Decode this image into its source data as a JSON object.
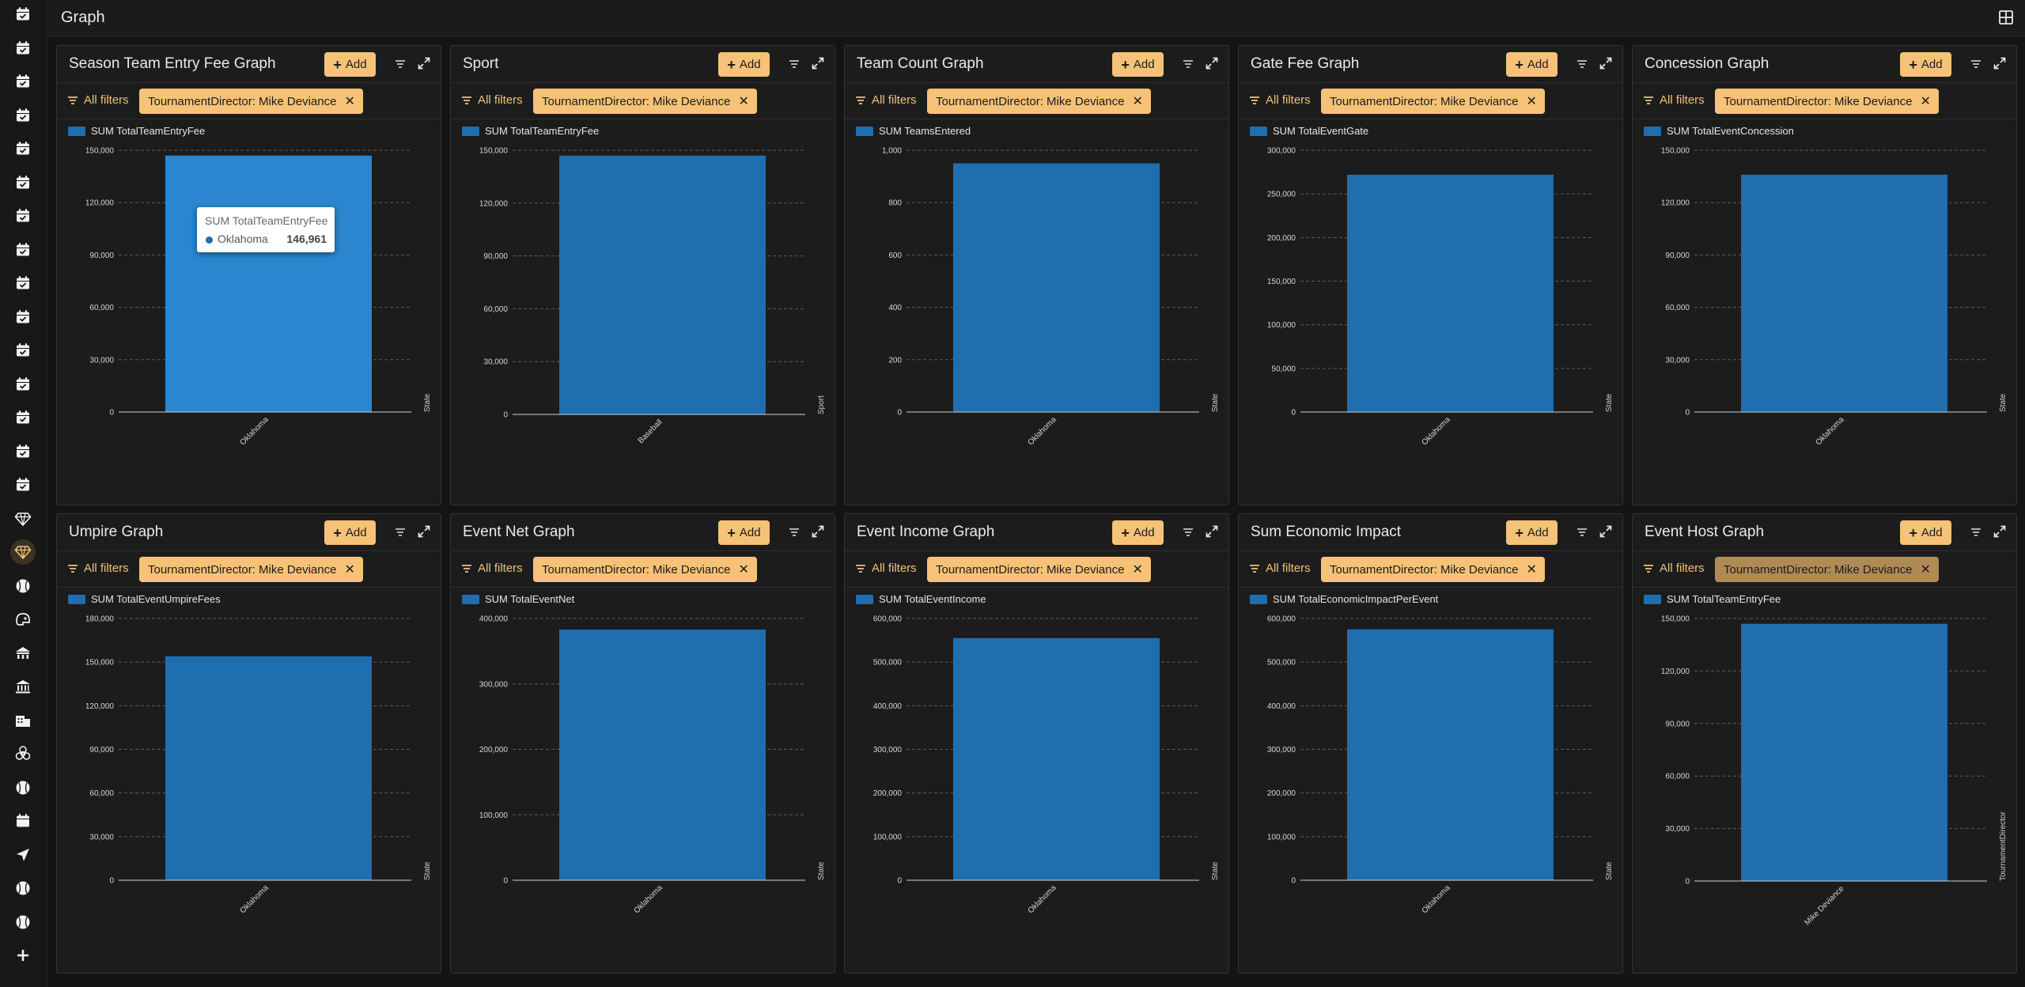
{
  "header": {
    "title": "Graph"
  },
  "sidebar": {
    "icons": [
      "calendar-check-icon",
      "calendar-check-icon",
      "calendar-check-icon",
      "calendar-check-icon",
      "calendar-check-icon",
      "calendar-check-icon",
      "calendar-check-icon",
      "calendar-check-icon",
      "calendar-check-icon",
      "calendar-check-icon",
      "calendar-check-icon",
      "calendar-check-icon",
      "calendar-check-icon",
      "calendar-check-icon",
      "calendar-check-icon",
      "diamond-icon",
      "diamond-icon",
      "baseball-icon",
      "helmet-icon",
      "stadium-icon",
      "bank-icon",
      "building-icon",
      "biohazard-icon",
      "baseball-icon",
      "calendar-icon",
      "send-icon",
      "baseball-icon",
      "baseball-icon",
      "plus-icon"
    ],
    "active_index": 16
  },
  "common": {
    "add_label": "Add",
    "all_filters_label": "All filters",
    "filter_chip": "TournamentDirector: Mike Deviance",
    "bar_color": "#1f6eb0",
    "accent_color": "#f5c277"
  },
  "panels": [
    {
      "title": "Season Team Entry Fee Graph",
      "chart_data": {
        "type": "bar",
        "legend": "SUM TotalTeamEntryFee",
        "categories": [
          "Oklahoma"
        ],
        "values": [
          146961
        ],
        "ylim": [
          0,
          150000
        ],
        "yticks": [
          "0",
          "30,000",
          "60,000",
          "90,000",
          "120,000",
          "150,000"
        ],
        "ytick_values": [
          0,
          30000,
          60000,
          90000,
          120000,
          150000
        ],
        "xlabel": "State"
      },
      "tooltip": {
        "title": "SUM TotalTeamEntryFee",
        "label": "Oklahoma",
        "value": "146,961"
      }
    },
    {
      "title": "Sport",
      "chart_data": {
        "type": "bar",
        "legend": "SUM TotalTeamEntryFee",
        "categories": [
          "Baseball"
        ],
        "values": [
          146961
        ],
        "ylim": [
          0,
          150000
        ],
        "yticks": [
          "0",
          "30,000",
          "60,000",
          "90,000",
          "120,000",
          "150,000"
        ],
        "ytick_values": [
          0,
          30000,
          60000,
          90000,
          120000,
          150000
        ],
        "xlabel": "Sport"
      }
    },
    {
      "title": "Team Count Graph",
      "chart_data": {
        "type": "bar",
        "legend": "SUM TeamsEntered",
        "categories": [
          "Oklahoma"
        ],
        "values": [
          950
        ],
        "ylim": [
          0,
          1000
        ],
        "yticks": [
          "0",
          "200",
          "400",
          "600",
          "800",
          "1,000"
        ],
        "ytick_values": [
          0,
          200,
          400,
          600,
          800,
          1000
        ],
        "xlabel": "State"
      }
    },
    {
      "title": "Gate Fee Graph",
      "chart_data": {
        "type": "bar",
        "legend": "SUM TotalEventGate",
        "categories": [
          "Oklahoma"
        ],
        "values": [
          272000
        ],
        "ylim": [
          0,
          300000
        ],
        "yticks": [
          "0",
          "50,000",
          "100,000",
          "150,000",
          "200,000",
          "250,000",
          "300,000"
        ],
        "ytick_values": [
          0,
          50000,
          100000,
          150000,
          200000,
          250000,
          300000
        ],
        "xlabel": "State"
      }
    },
    {
      "title": "Concession Graph",
      "chart_data": {
        "type": "bar",
        "legend": "SUM TotalEventConcession",
        "categories": [
          "Oklahoma"
        ],
        "values": [
          136000
        ],
        "ylim": [
          0,
          150000
        ],
        "yticks": [
          "0",
          "30,000",
          "60,000",
          "90,000",
          "120,000",
          "150,000"
        ],
        "ytick_values": [
          0,
          30000,
          60000,
          90000,
          120000,
          150000
        ],
        "xlabel": "State"
      }
    },
    {
      "title": "Umpire Graph",
      "chart_data": {
        "type": "bar",
        "legend": "SUM TotalEventUmpireFees",
        "categories": [
          "Oklahoma"
        ],
        "values": [
          154000
        ],
        "ylim": [
          0,
          180000
        ],
        "yticks": [
          "0",
          "30,000",
          "60,000",
          "90,000",
          "120,000",
          "150,000",
          "180,000"
        ],
        "ytick_values": [
          0,
          30000,
          60000,
          90000,
          120000,
          150000,
          180000
        ],
        "xlabel": "State"
      }
    },
    {
      "title": "Event Net Graph",
      "chart_data": {
        "type": "bar",
        "legend": "SUM TotalEventNet",
        "categories": [
          "Oklahoma"
        ],
        "values": [
          383000
        ],
        "ylim": [
          0,
          400000
        ],
        "yticks": [
          "0",
          "100,000",
          "200,000",
          "300,000",
          "400,000"
        ],
        "ytick_values": [
          0,
          100000,
          200000,
          300000,
          400000
        ],
        "xlabel": "State"
      }
    },
    {
      "title": "Event Income Graph",
      "chart_data": {
        "type": "bar",
        "legend": "SUM TotalEventIncome",
        "categories": [
          "Oklahoma"
        ],
        "values": [
          555000
        ],
        "ylim": [
          0,
          600000
        ],
        "yticks": [
          "0",
          "100,000",
          "200,000",
          "300,000",
          "400,000",
          "500,000",
          "600,000"
        ],
        "ytick_values": [
          0,
          100000,
          200000,
          300000,
          400000,
          500000,
          600000
        ],
        "xlabel": "State"
      }
    },
    {
      "title": "Sum Economic Impact",
      "chart_data": {
        "type": "bar",
        "legend": "SUM TotalEconomicImpactPerEvent",
        "categories": [
          "Oklahoma"
        ],
        "values": [
          575000
        ],
        "ylim": [
          0,
          600000
        ],
        "yticks": [
          "0",
          "100,000",
          "200,000",
          "300,000",
          "400,000",
          "500,000",
          "600,000"
        ],
        "ytick_values": [
          0,
          100000,
          200000,
          300000,
          400000,
          500000,
          600000
        ],
        "xlabel": "State"
      }
    },
    {
      "title": "Event Host Graph",
      "chart_data": {
        "type": "bar",
        "legend": "SUM TotalTeamEntryFee",
        "categories": [
          "Mike Deviance"
        ],
        "values": [
          146961
        ],
        "ylim": [
          0,
          150000
        ],
        "yticks": [
          "0",
          "30,000",
          "60,000",
          "90,000",
          "120,000",
          "150,000"
        ],
        "ytick_values": [
          0,
          30000,
          60000,
          90000,
          120000,
          150000
        ],
        "xlabel": "TournamentDirector"
      },
      "chip_muted": true
    }
  ]
}
